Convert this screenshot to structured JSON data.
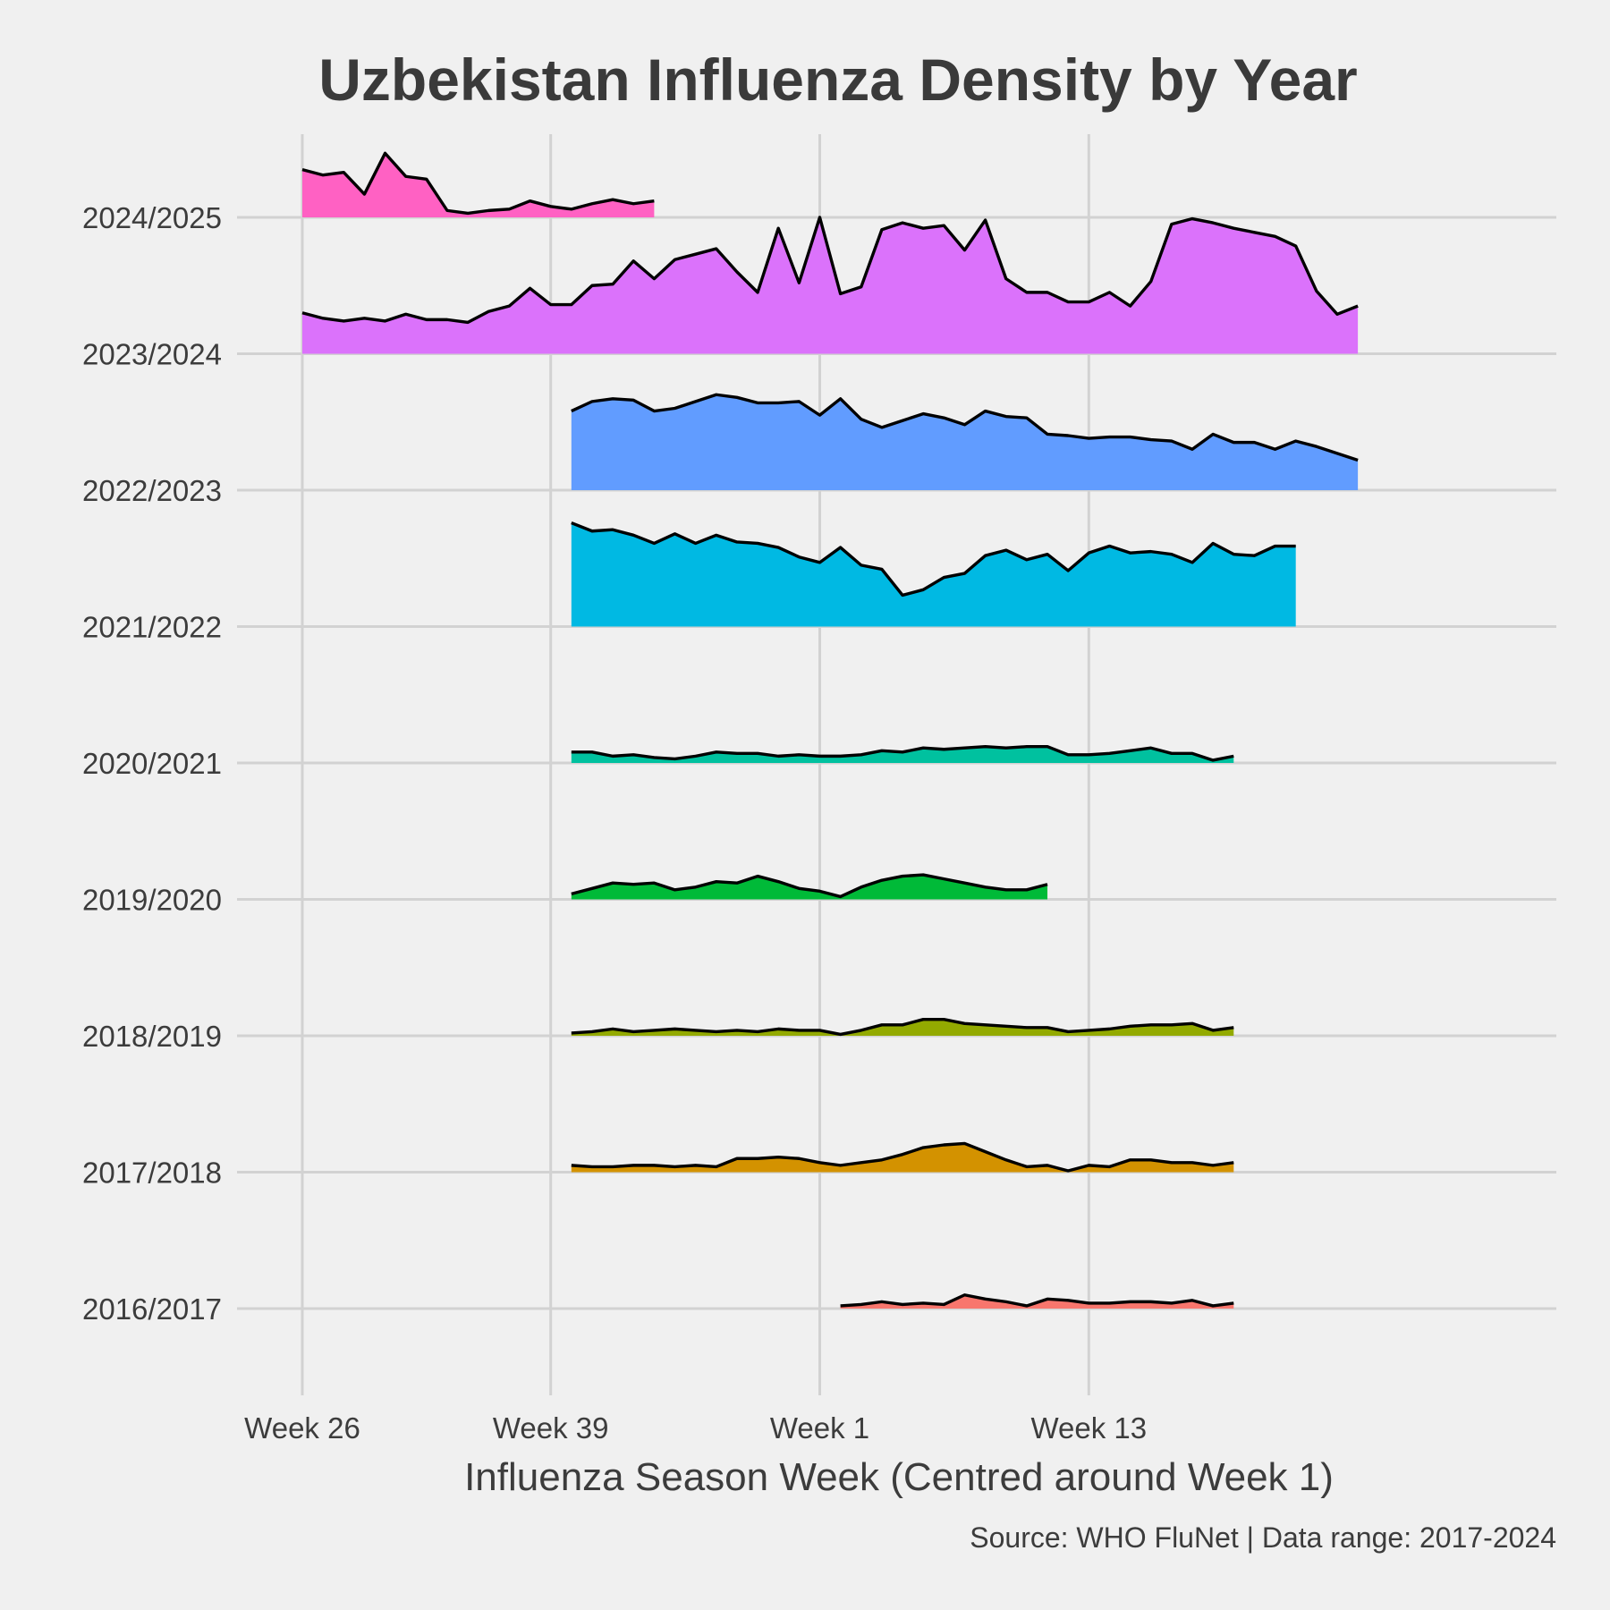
{
  "chart_data": {
    "type": "area",
    "subtype": "ridgeline",
    "title": "Uzbekistan Influenza Density by Year",
    "xlabel": "Influenza Season Week (Centred around Week 1)",
    "caption": "Source: WHO FluNet | Data range: 2017-2024",
    "x_unit": "season week index (Week 26 = 0, Week 1 = 27)",
    "xlim": [
      -2.6,
      54.7
    ],
    "x_ticks": [
      {
        "x": 0,
        "label": "Week 26"
      },
      {
        "x": 12,
        "label": "Week 39"
      },
      {
        "x": 25,
        "label": "Week 1"
      },
      {
        "x": 38,
        "label": "Week 13"
      }
    ],
    "seasons": [
      "2016/2017",
      "2017/2018",
      "2018/2019",
      "2019/2020",
      "2020/2021",
      "2021/2022",
      "2022/2023",
      "2023/2024",
      "2024/2025"
    ],
    "ridge_height_unit": "density relative to row spacing",
    "grid": true,
    "legend": "none",
    "series": [
      {
        "name": "2016/2017",
        "color": "#F8766D",
        "x_start": 26,
        "values": [
          0.02,
          0.03,
          0.05,
          0.03,
          0.04,
          0.03,
          0.1,
          0.07,
          0.05,
          0.02,
          0.07,
          0.06,
          0.04,
          0.04,
          0.05,
          0.05,
          0.04,
          0.06,
          0.02,
          0.04
        ]
      },
      {
        "name": "2017/2018",
        "color": "#D39200",
        "x_start": 13,
        "values": [
          0.05,
          0.04,
          0.04,
          0.05,
          0.05,
          0.04,
          0.05,
          0.04,
          0.1,
          0.1,
          0.11,
          0.1,
          0.07,
          0.05,
          0.07,
          0.09,
          0.13,
          0.18,
          0.2,
          0.21,
          0.15,
          0.09,
          0.04,
          0.05,
          0.01,
          0.05,
          0.04,
          0.09,
          0.09,
          0.07,
          0.07,
          0.05,
          0.07
        ]
      },
      {
        "name": "2018/2019",
        "color": "#93AA00",
        "x_start": 13,
        "values": [
          0.02,
          0.03,
          0.05,
          0.03,
          0.04,
          0.05,
          0.04,
          0.03,
          0.04,
          0.03,
          0.05,
          0.04,
          0.04,
          0.01,
          0.04,
          0.08,
          0.08,
          0.12,
          0.12,
          0.09,
          0.08,
          0.07,
          0.06,
          0.06,
          0.03,
          0.04,
          0.05,
          0.07,
          0.08,
          0.08,
          0.09,
          0.04,
          0.06
        ]
      },
      {
        "name": "2019/2020",
        "color": "#00BA38",
        "x_start": 13,
        "values": [
          0.04,
          0.08,
          0.12,
          0.11,
          0.12,
          0.07,
          0.09,
          0.13,
          0.12,
          0.17,
          0.13,
          0.08,
          0.06,
          0.02,
          0.09,
          0.14,
          0.17,
          0.18,
          0.15,
          0.12,
          0.09,
          0.07,
          0.07,
          0.11
        ]
      },
      {
        "name": "2020/2021",
        "color": "#00C19F",
        "x_start": 13,
        "values": [
          0.08,
          0.08,
          0.05,
          0.06,
          0.04,
          0.03,
          0.05,
          0.08,
          0.07,
          0.07,
          0.05,
          0.06,
          0.05,
          0.05,
          0.06,
          0.09,
          0.08,
          0.11,
          0.1,
          0.11,
          0.12,
          0.11,
          0.12,
          0.12,
          0.06,
          0.06,
          0.07,
          0.09,
          0.11,
          0.07,
          0.07,
          0.02,
          0.05
        ]
      },
      {
        "name": "2021/2022",
        "color": "#00B9E3",
        "x_start": 13,
        "values": [
          0.76,
          0.7,
          0.71,
          0.67,
          0.61,
          0.68,
          0.61,
          0.67,
          0.62,
          0.61,
          0.58,
          0.51,
          0.47,
          0.58,
          0.45,
          0.42,
          0.23,
          0.27,
          0.36,
          0.39,
          0.52,
          0.56,
          0.49,
          0.53,
          0.41,
          0.54,
          0.59,
          0.54,
          0.55,
          0.53,
          0.47,
          0.61,
          0.53,
          0.52,
          0.59,
          0.59
        ]
      },
      {
        "name": "2022/2023",
        "color": "#619CFF",
        "x_start": 13,
        "values": [
          0.58,
          0.65,
          0.67,
          0.66,
          0.58,
          0.6,
          0.65,
          0.7,
          0.68,
          0.64,
          0.64,
          0.65,
          0.55,
          0.67,
          0.52,
          0.46,
          0.51,
          0.56,
          0.53,
          0.48,
          0.58,
          0.54,
          0.53,
          0.41,
          0.4,
          0.38,
          0.39,
          0.39,
          0.37,
          0.36,
          0.3,
          0.41,
          0.35,
          0.35,
          0.3,
          0.36,
          0.32,
          0.27,
          0.22
        ]
      },
      {
        "name": "2023/2024",
        "color": "#DB72FB",
        "x_start": 0,
        "values": [
          0.3,
          0.26,
          0.24,
          0.26,
          0.24,
          0.29,
          0.25,
          0.25,
          0.23,
          0.31,
          0.35,
          0.48,
          0.36,
          0.36,
          0.5,
          0.51,
          0.68,
          0.55,
          0.69,
          0.73,
          0.77,
          0.6,
          0.45,
          0.92,
          0.52,
          1.0,
          0.44,
          0.49,
          0.91,
          0.96,
          0.92,
          0.94,
          0.76,
          0.98,
          0.55,
          0.45,
          0.45,
          0.38,
          0.38,
          0.45,
          0.35,
          0.53,
          0.95,
          0.99,
          0.96,
          0.92,
          0.89,
          0.86,
          0.79,
          0.46,
          0.29,
          0.35
        ]
      },
      {
        "name": "2024/2025",
        "color": "#FF61C3",
        "x_start": 0,
        "values": [
          0.35,
          0.31,
          0.33,
          0.17,
          0.47,
          0.3,
          0.28,
          0.05,
          0.03,
          0.05,
          0.06,
          0.12,
          0.08,
          0.06,
          0.1,
          0.13,
          0.1,
          0.12
        ]
      }
    ]
  }
}
